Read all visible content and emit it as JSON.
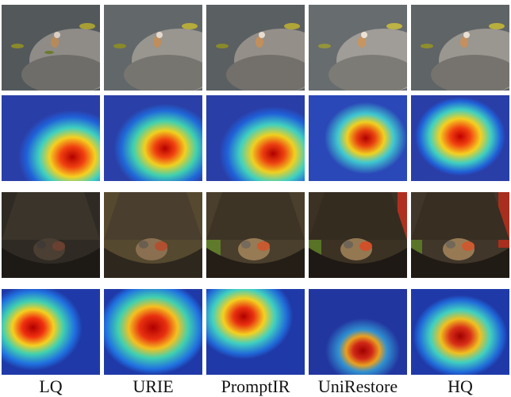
{
  "figure": {
    "columns": [
      {
        "label": "LQ"
      },
      {
        "label": "URIE"
      },
      {
        "label": "PromptIR"
      },
      {
        "label": "UniRestore"
      },
      {
        "label": "HQ"
      }
    ],
    "rows": [
      {
        "kind": "image"
      },
      {
        "kind": "attention-map"
      },
      {
        "kind": "image"
      },
      {
        "kind": "attention-map"
      }
    ]
  }
}
